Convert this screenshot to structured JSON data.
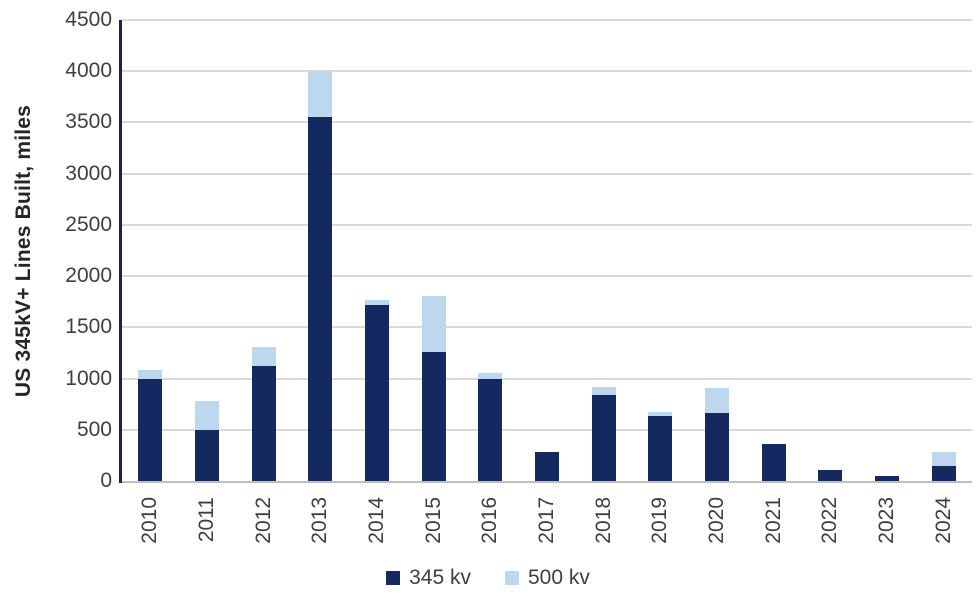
{
  "chart": {
    "colors": {
      "series_345kv": "#132960",
      "series_500kv": "#bdd7ee",
      "gridline": "#d9d9d9",
      "baseline": "#bfbfbf",
      "y_axis_line": "#16254e",
      "tick_text": "#3f3f3f",
      "axis_title_text": "#262626"
    }
  },
  "chart_data": {
    "type": "bar",
    "stacked": true,
    "title": "",
    "xlabel": "",
    "ylabel": "US 345kV+ Lines Built, miles",
    "categories": [
      "2010",
      "2011",
      "2012",
      "2013",
      "2014",
      "2015",
      "2016",
      "2017",
      "2018",
      "2019",
      "2020",
      "2021",
      "2022",
      "2023",
      "2024"
    ],
    "series": [
      {
        "name": "345 kv",
        "color": "#132960",
        "values": [
          1000,
          500,
          1120,
          3550,
          1720,
          1260,
          1000,
          280,
          840,
          630,
          660,
          360,
          110,
          50,
          150
        ]
      },
      {
        "name": "500 kv",
        "color": "#bdd7ee",
        "values": [
          80,
          280,
          190,
          450,
          50,
          550,
          50,
          0,
          80,
          40,
          250,
          0,
          0,
          0,
          130
        ]
      }
    ],
    "totals": [
      1080,
      780,
      1310,
      4000,
      1770,
      1810,
      1050,
      280,
      920,
      670,
      910,
      360,
      110,
      50,
      280
    ],
    "ylim": [
      0,
      4500
    ],
    "ytick_step": 500,
    "yticks": [
      0,
      500,
      1000,
      1500,
      2000,
      2500,
      3000,
      3500,
      4000,
      4500
    ],
    "grid": true,
    "legend_position": "bottom",
    "x_tick_rotation": -90
  }
}
